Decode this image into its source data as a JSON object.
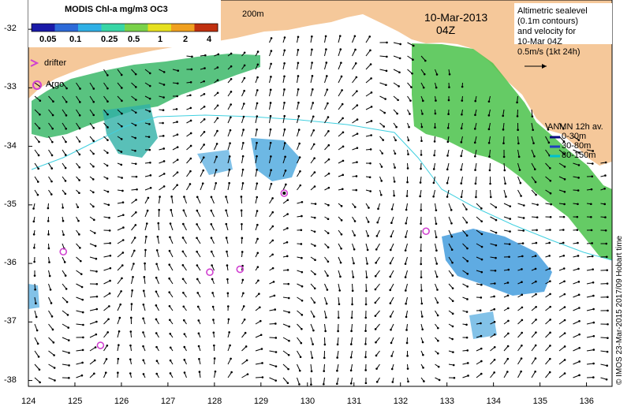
{
  "title": "MODIS Chl-a mg/m3 OC3",
  "colorbar": {
    "tick_labels": [
      "0.05",
      "0.1",
      "0.25",
      "0.5",
      "1",
      "2",
      "4"
    ],
    "colors": [
      "#1a1aa8",
      "#2d6ad8",
      "#2fb0e6",
      "#38d6a6",
      "#7ad24a",
      "#e6e020",
      "#f0a020",
      "#c03010"
    ]
  },
  "date_label": "10-Mar-2013",
  "time_label": "04Z",
  "isobath_label": "200m",
  "altimetry_legend": {
    "lines": [
      "Altimetric sealevel",
      "(0.1m contours)",
      "and velocity for",
      "10-Mar 04Z",
      "0.5m/s (1kt 24h)"
    ]
  },
  "anmn_legend": {
    "title": "ANMN 12h av.",
    "items": [
      {
        "label": "0-30m",
        "color": "#0a0a80"
      },
      {
        "label": "30-80m",
        "color": "#2040c0"
      },
      {
        "label": "80-150m",
        "color": "#00c0d0"
      }
    ]
  },
  "legend_drifter": "drifter",
  "legend_argo": "Argo",
  "credit": "© IMOS 23-Mar-2015 2017/09 Hobart time",
  "axes": {
    "lon_ticks": [
      "124",
      "125",
      "126",
      "127",
      "128",
      "129",
      "130",
      "131",
      "132",
      "133",
      "134",
      "135",
      "136"
    ],
    "lat_ticks": [
      "-32",
      "-33",
      "-34",
      "-35",
      "-36",
      "-37",
      "-38"
    ]
  },
  "colors": {
    "land": "#f5c89a",
    "ocean": "#ffffff",
    "marker": "#d040d0"
  },
  "argo_floats": [
    {
      "lon": 124.75,
      "lat": -35.8
    },
    {
      "lon": 125.55,
      "lat": -37.4
    },
    {
      "lon": 127.9,
      "lat": -36.15
    },
    {
      "lon": 128.55,
      "lat": -36.1
    },
    {
      "lon": 129.5,
      "lat": -34.8
    },
    {
      "lon": 132.55,
      "lat": -35.45
    }
  ],
  "drifters": [
    {
      "lon": 129.5,
      "lat": -34.8
    }
  ]
}
